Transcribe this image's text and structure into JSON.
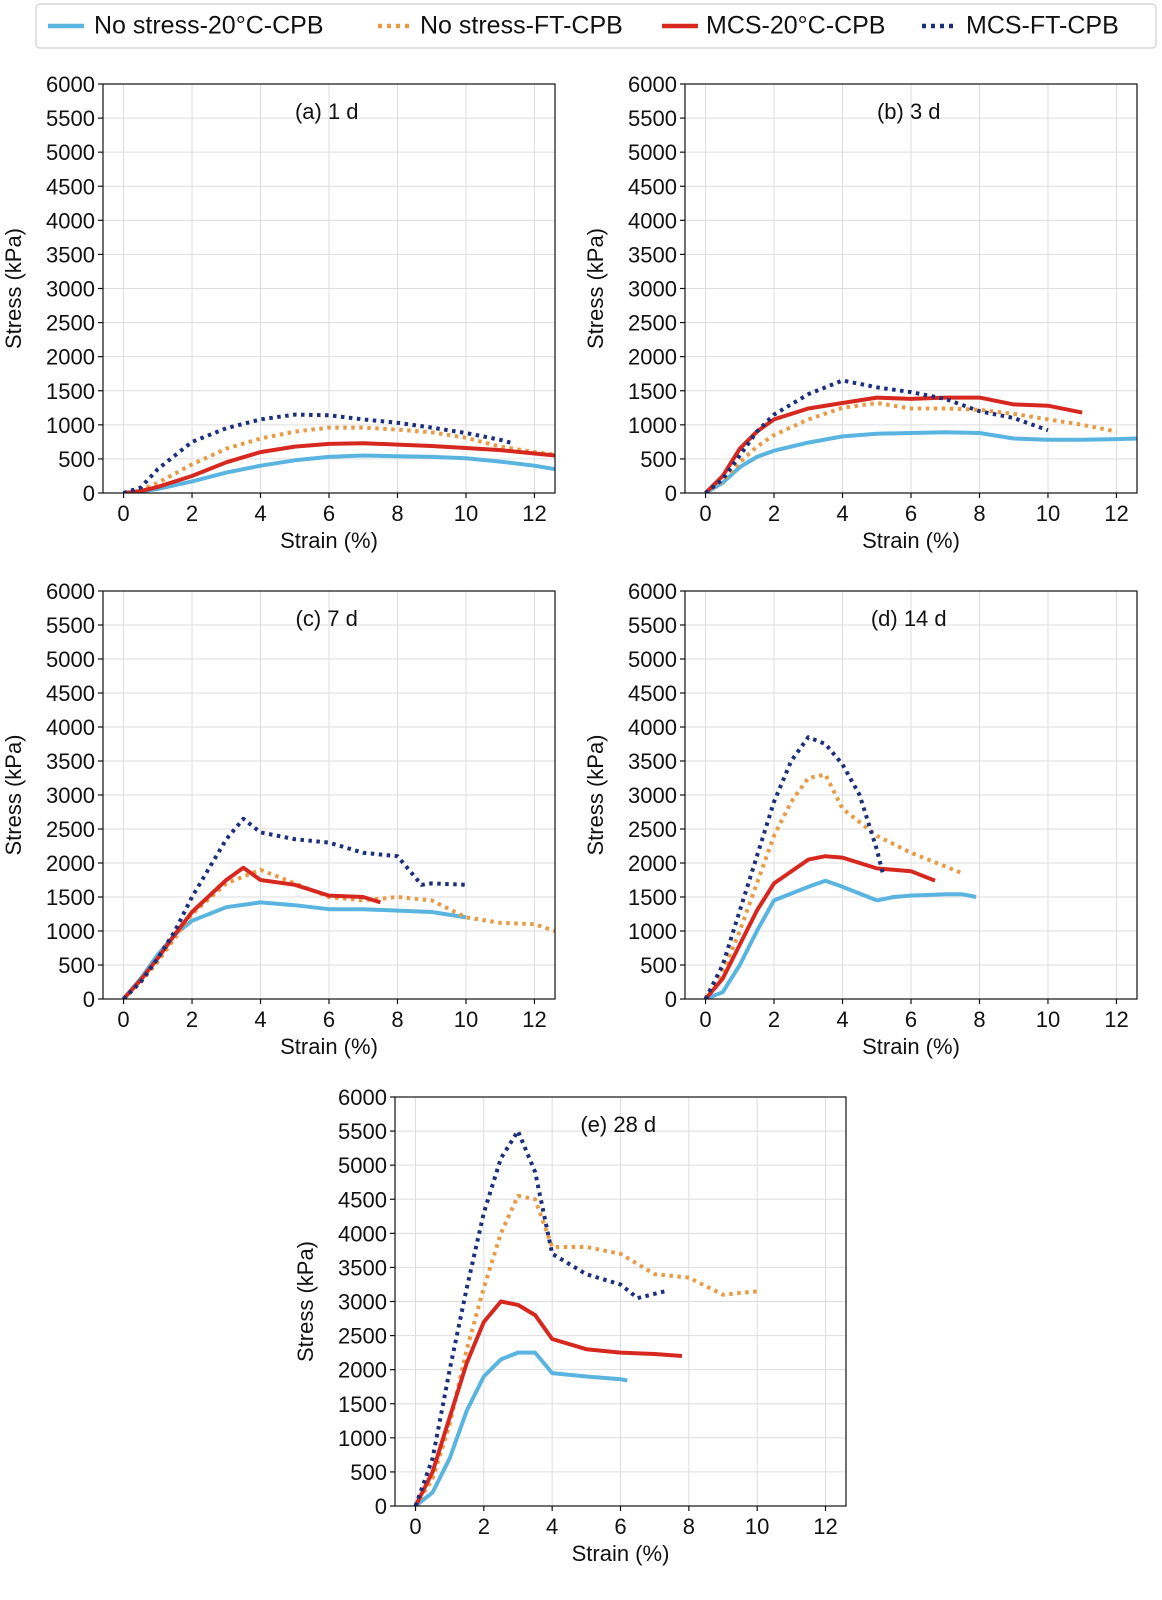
{
  "legend": [
    {
      "name": "No stress-20°C-CPB",
      "color": "#5ab4e0",
      "style": "solid"
    },
    {
      "name": "No stress-FT-CPB",
      "color": "#e89a45",
      "style": "dotted"
    },
    {
      "name": "MCS-20°C-CPB",
      "color": "#d6281f",
      "style": "solid"
    },
    {
      "name": "MCS-FT-CPB",
      "color": "#1b2f7a",
      "style": "dotted"
    }
  ],
  "chart_data": [
    {
      "type": "line",
      "title": "(a) 1 d",
      "xlabel": "Strain (%)",
      "ylabel": "Stress (kPa)",
      "xlim": [
        -0.6,
        12.6
      ],
      "ylim": [
        0,
        6000
      ],
      "xticks": [
        0,
        2,
        4,
        6,
        8,
        10,
        12
      ],
      "yticks": [
        0,
        500,
        1000,
        1500,
        2000,
        2500,
        3000,
        3500,
        4000,
        4500,
        5000,
        5500,
        6000
      ],
      "grid": true,
      "series": [
        {
          "name": "No stress-20°C-CPB",
          "x": [
            0,
            0.5,
            1,
            2,
            3,
            4,
            5,
            6,
            7,
            8,
            9,
            10,
            11,
            12,
            12.6
          ],
          "y": [
            0,
            20,
            60,
            170,
            300,
            400,
            480,
            530,
            550,
            540,
            530,
            510,
            460,
            400,
            350
          ]
        },
        {
          "name": "No stress-FT-CPB",
          "x": [
            0,
            0.5,
            1,
            2,
            3,
            4,
            5,
            6,
            7,
            8,
            9,
            10,
            11,
            12,
            12.6
          ],
          "y": [
            0,
            40,
            150,
            420,
            650,
            800,
            900,
            960,
            960,
            930,
            890,
            810,
            680,
            600,
            560
          ]
        },
        {
          "name": "MCS-20°C-CPB",
          "x": [
            0,
            0.5,
            1,
            2,
            3,
            4,
            5,
            6,
            7,
            8,
            9,
            10,
            11,
            12,
            12.6
          ],
          "y": [
            0,
            30,
            90,
            250,
            450,
            600,
            680,
            720,
            730,
            710,
            690,
            660,
            630,
            580,
            550
          ]
        },
        {
          "name": "MCS-FT-CPB",
          "x": [
            0,
            0.5,
            1,
            2,
            3,
            4,
            5,
            6,
            7,
            8,
            9,
            10,
            11,
            11.3
          ],
          "y": [
            0,
            80,
            350,
            750,
            950,
            1080,
            1150,
            1140,
            1080,
            1030,
            960,
            880,
            780,
            740
          ]
        }
      ]
    },
    {
      "type": "line",
      "title": "(b) 3 d",
      "xlabel": "Strain (%)",
      "ylabel": "Stress (kPa)",
      "xlim": [
        -0.6,
        12.6
      ],
      "ylim": [
        0,
        6000
      ],
      "xticks": [
        0,
        2,
        4,
        6,
        8,
        10,
        12
      ],
      "yticks": [
        0,
        500,
        1000,
        1500,
        2000,
        2500,
        3000,
        3500,
        4000,
        4500,
        5000,
        5500,
        6000
      ],
      "grid": true,
      "series": [
        {
          "name": "No stress-20°C-CPB",
          "x": [
            0,
            0.5,
            1,
            1.5,
            2,
            3,
            4,
            5,
            6,
            7,
            8,
            9,
            10,
            11,
            12,
            12.6
          ],
          "y": [
            0,
            150,
            380,
            530,
            620,
            740,
            830,
            870,
            880,
            890,
            880,
            800,
            780,
            780,
            790,
            800
          ]
        },
        {
          "name": "No stress-FT-CPB",
          "x": [
            0,
            0.5,
            1,
            1.5,
            2,
            3,
            4,
            5,
            6,
            7,
            8,
            9,
            10,
            11,
            12
          ],
          "y": [
            0,
            180,
            450,
            680,
            850,
            1080,
            1250,
            1320,
            1240,
            1240,
            1220,
            1160,
            1080,
            1000,
            900
          ]
        },
        {
          "name": "MCS-20°C-CPB",
          "x": [
            0,
            0.5,
            1,
            1.5,
            2,
            3,
            4,
            5,
            6,
            7,
            8,
            9,
            10,
            11
          ],
          "y": [
            0,
            250,
            650,
            900,
            1080,
            1240,
            1320,
            1400,
            1380,
            1400,
            1400,
            1300,
            1280,
            1180
          ]
        },
        {
          "name": "MCS-FT-CPB",
          "x": [
            0,
            0.5,
            1,
            1.5,
            2,
            3,
            4,
            5,
            6,
            7,
            8,
            9,
            10
          ],
          "y": [
            0,
            200,
            550,
            900,
            1150,
            1450,
            1650,
            1550,
            1480,
            1380,
            1200,
            1100,
            920
          ]
        }
      ]
    },
    {
      "type": "line",
      "title": "(c) 7 d",
      "xlabel": "Strain (%)",
      "ylabel": "Stress (kPa)",
      "xlim": [
        -0.6,
        12.6
      ],
      "ylim": [
        0,
        6000
      ],
      "xticks": [
        0,
        2,
        4,
        6,
        8,
        10,
        12
      ],
      "yticks": [
        0,
        500,
        1000,
        1500,
        2000,
        2500,
        3000,
        3500,
        4000,
        4500,
        5000,
        5500,
        6000
      ],
      "grid": true,
      "series": [
        {
          "name": "No stress-20°C-CPB",
          "x": [
            0,
            0.5,
            1,
            1.5,
            2,
            3,
            4,
            5,
            6,
            7,
            8,
            9,
            10
          ],
          "y": [
            0,
            300,
            650,
            950,
            1150,
            1350,
            1420,
            1380,
            1320,
            1320,
            1300,
            1280,
            1200
          ]
        },
        {
          "name": "No stress-FT-CPB",
          "x": [
            0,
            0.5,
            1,
            1.5,
            2,
            3,
            4,
            5,
            6,
            7,
            8,
            9,
            10,
            11,
            12,
            12.6
          ],
          "y": [
            0,
            250,
            550,
            900,
            1250,
            1700,
            1900,
            1700,
            1500,
            1450,
            1500,
            1450,
            1200,
            1120,
            1100,
            1000
          ]
        },
        {
          "name": "MCS-20°C-CPB",
          "x": [
            0,
            0.5,
            1,
            1.5,
            2,
            3,
            3.5,
            4,
            5,
            6,
            7,
            7.5
          ],
          "y": [
            0,
            280,
            600,
            950,
            1280,
            1750,
            1930,
            1750,
            1680,
            1520,
            1500,
            1420
          ]
        },
        {
          "name": "MCS-FT-CPB",
          "x": [
            0,
            0.5,
            1,
            1.5,
            2,
            3,
            3.5,
            4,
            5,
            6,
            7,
            8,
            8.7,
            9,
            10
          ],
          "y": [
            0,
            250,
            600,
            1000,
            1500,
            2350,
            2650,
            2450,
            2350,
            2300,
            2150,
            2100,
            1680,
            1700,
            1680
          ]
        }
      ]
    },
    {
      "type": "line",
      "title": "(d) 14 d",
      "xlabel": "Strain (%)",
      "ylabel": "Stress (kPa)",
      "xlim": [
        -0.6,
        12.6
      ],
      "ylim": [
        0,
        6000
      ],
      "xticks": [
        0,
        2,
        4,
        6,
        8,
        10,
        12
      ],
      "yticks": [
        0,
        500,
        1000,
        1500,
        2000,
        2500,
        3000,
        3500,
        4000,
        4500,
        5000,
        5500,
        6000
      ],
      "grid": true,
      "series": [
        {
          "name": "No stress-20°C-CPB",
          "x": [
            0,
            0.5,
            1,
            1.5,
            2,
            3,
            3.5,
            4,
            5,
            5.5,
            6,
            7,
            7.5,
            7.9
          ],
          "y": [
            0,
            100,
            500,
            1000,
            1450,
            1650,
            1740,
            1650,
            1450,
            1500,
            1520,
            1540,
            1540,
            1500
          ]
        },
        {
          "name": "No stress-FT-CPB",
          "x": [
            0,
            0.5,
            1,
            1.5,
            2,
            2.5,
            3,
            3.5,
            4,
            5,
            6,
            7,
            7.5
          ],
          "y": [
            0,
            400,
            1000,
            1700,
            2400,
            2900,
            3250,
            3300,
            2800,
            2400,
            2150,
            1950,
            1850
          ]
        },
        {
          "name": "MCS-20°C-CPB",
          "x": [
            0,
            0.5,
            1,
            1.5,
            2,
            3,
            3.5,
            4,
            5,
            6,
            6.7
          ],
          "y": [
            0,
            300,
            800,
            1300,
            1700,
            2050,
            2100,
            2080,
            1920,
            1880,
            1740
          ]
        },
        {
          "name": "MCS-FT-CPB",
          "x": [
            0,
            0.5,
            1,
            1.5,
            2,
            2.5,
            3,
            3.5,
            4,
            4.5,
            5,
            5.2
          ],
          "y": [
            0,
            500,
            1300,
            2100,
            2900,
            3500,
            3850,
            3750,
            3450,
            3000,
            2200,
            1800
          ]
        }
      ]
    },
    {
      "type": "line",
      "title": "(e) 28 d",
      "xlabel": "Strain (%)",
      "ylabel": "Stress (kPa)",
      "xlim": [
        -0.6,
        12.6
      ],
      "ylim": [
        0,
        6000
      ],
      "xticks": [
        0,
        2,
        4,
        6,
        8,
        10,
        12
      ],
      "yticks": [
        0,
        500,
        1000,
        1500,
        2000,
        2500,
        3000,
        3500,
        4000,
        4500,
        5000,
        5500,
        6000
      ],
      "grid": true,
      "series": [
        {
          "name": "No stress-20°C-CPB",
          "x": [
            0,
            0.5,
            1,
            1.5,
            2,
            2.5,
            3,
            3.5,
            4,
            5,
            6,
            6.2
          ],
          "y": [
            0,
            200,
            700,
            1400,
            1900,
            2150,
            2250,
            2250,
            1950,
            1900,
            1860,
            1840
          ]
        },
        {
          "name": "No stress-FT-CPB",
          "x": [
            0,
            0.5,
            1,
            1.5,
            2,
            2.5,
            3,
            3.5,
            4,
            5,
            6,
            7,
            8,
            9,
            10
          ],
          "y": [
            0,
            400,
            1200,
            2300,
            3200,
            4000,
            4550,
            4500,
            3800,
            3800,
            3700,
            3400,
            3350,
            3100,
            3150
          ]
        },
        {
          "name": "MCS-20°C-CPB",
          "x": [
            0,
            0.5,
            1,
            1.5,
            2,
            2.5,
            3,
            3.5,
            4,
            5,
            6,
            7,
            7.8
          ],
          "y": [
            0,
            500,
            1300,
            2100,
            2700,
            3000,
            2950,
            2800,
            2450,
            2300,
            2250,
            2230,
            2200
          ]
        },
        {
          "name": "MCS-FT-CPB",
          "x": [
            0,
            0.5,
            1,
            1.5,
            2,
            2.5,
            3,
            3.5,
            4,
            5,
            6,
            6.5,
            7.3
          ],
          "y": [
            0,
            700,
            2000,
            3200,
            4300,
            5100,
            5500,
            4900,
            3700,
            3400,
            3250,
            3050,
            3150
          ]
        }
      ]
    }
  ]
}
